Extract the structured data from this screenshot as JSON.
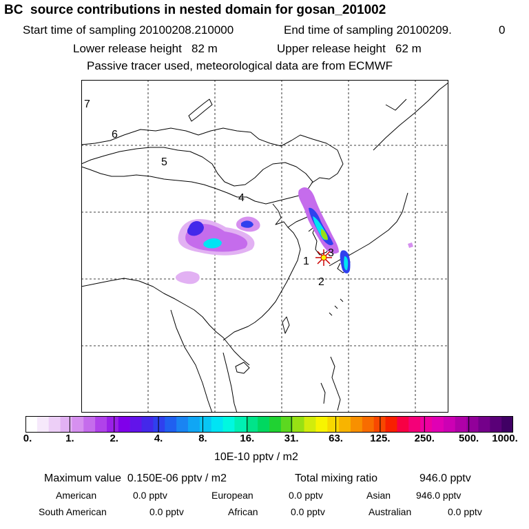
{
  "header": {
    "title": "BC  source contributions in nested domain for gosan_201002",
    "start_time": "Start time of sampling 20100208.210000",
    "end_time": "End time of sampling 20100209.",
    "end_time_suffix": "0",
    "lower_release": "Lower release height   82 m",
    "upper_release": "Upper release height   62 m",
    "tracer_note": "Passive tracer used, meteorological data are from ECMWF"
  },
  "map": {
    "region_labels": [
      "7",
      "6",
      "5",
      "4",
      "1",
      "2",
      "3"
    ],
    "grid": "dashed",
    "marker": "receptor-star"
  },
  "colorbar": {
    "ticks": [
      "0.",
      "1.",
      "2.",
      "4.",
      "8.",
      "16.",
      "31.",
      "63.",
      "125.",
      "250.",
      "500.",
      "1000."
    ],
    "colors": [
      "#ffffff",
      "#f6e9fb",
      "#edcff7",
      "#e2b1f3",
      "#d690ef",
      "#c56cec",
      "#b042ea",
      "#9a20e8",
      "#8000ea",
      "#6214ea",
      "#4428ea",
      "#2f40ee",
      "#2060f0",
      "#1a84f2",
      "#10a6f4",
      "#08c6f4",
      "#00e4f4",
      "#00f8e0",
      "#00f0b4",
      "#00e48a",
      "#00d860",
      "#20d232",
      "#5cd820",
      "#98e014",
      "#d2ec0c",
      "#f8f400",
      "#f8d800",
      "#f8b400",
      "#f89000",
      "#f86c00",
      "#f84800",
      "#f82000",
      "#f80044",
      "#f40078",
      "#ee00a0",
      "#e000b4",
      "#cc00b4",
      "#b000a8",
      "#92009a",
      "#74008a",
      "#5a0078",
      "#400064"
    ],
    "unit": "10E-10 pptv / m2"
  },
  "summary": {
    "max_label": "Maximum value  0.150E-06 pptv / m2",
    "total_label": "Total mixing ratio",
    "total_value": "946.0 pptv",
    "american_label": "American",
    "american_value": "0.0 pptv",
    "european_label": "European",
    "european_value": "0.0 pptv",
    "asian_label": "Asian",
    "asian_value": "946.0 pptv",
    "south_american_label": "South American",
    "south_american_value": "0.0 pptv",
    "african_label": "African",
    "african_value": "0.0 pptv",
    "australian_label": "Australian",
    "australian_value": "0.0 pptv"
  }
}
